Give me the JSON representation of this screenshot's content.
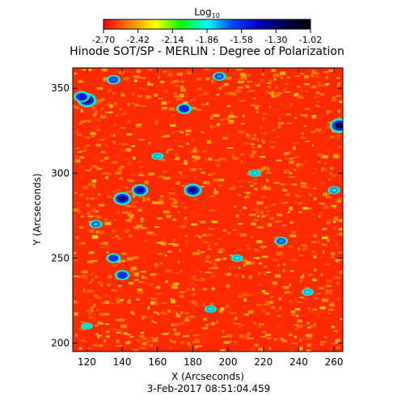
{
  "chart_data": {
    "type": "heatmap",
    "title": "Hinode SOT/SP - MERLIN : Degree of Polarization",
    "xlabel": "X (Arcseconds)",
    "ylabel": "Y (Arcseconds)",
    "xlim": [
      112,
      265
    ],
    "ylim": [
      195,
      362
    ],
    "xticks": [
      120,
      140,
      160,
      180,
      200,
      220,
      240,
      260
    ],
    "yticks": [
      200,
      250,
      300,
      350
    ],
    "timestamp": "3-Feb-2017 08:51:04.459",
    "colorbar": {
      "label_base": "Log",
      "label_sub": "10",
      "range": [
        -2.7,
        -1.02
      ],
      "ticks": [
        "-2.70",
        "-2.42",
        "-2.14",
        "-1.86",
        "-1.58",
        "-1.30",
        "-1.02"
      ],
      "colors": [
        "#ff0000",
        "#ff8000",
        "#ffff00",
        "#00ff00",
        "#00ffff",
        "#0040ff",
        "#0000c0",
        "#000050",
        "#000000"
      ]
    },
    "features": [
      {
        "x": 175,
        "y": 338,
        "v": -1.55
      },
      {
        "x": 150,
        "y": 290,
        "v": -1.4
      },
      {
        "x": 140,
        "y": 285,
        "v": -1.3
      },
      {
        "x": 180,
        "y": 290,
        "v": -1.3
      },
      {
        "x": 120,
        "y": 343,
        "v": -1.2
      },
      {
        "x": 135,
        "y": 355,
        "v": -1.7
      },
      {
        "x": 195,
        "y": 357,
        "v": -1.75
      },
      {
        "x": 263,
        "y": 328,
        "v": -1.15
      },
      {
        "x": 135,
        "y": 250,
        "v": -1.65
      },
      {
        "x": 125,
        "y": 270,
        "v": -1.8
      },
      {
        "x": 230,
        "y": 260,
        "v": -1.75
      },
      {
        "x": 260,
        "y": 290,
        "v": -1.85
      },
      {
        "x": 117,
        "y": 345,
        "v": -1.5
      },
      {
        "x": 140,
        "y": 240,
        "v": -1.6
      },
      {
        "x": 215,
        "y": 300,
        "v": -1.9
      },
      {
        "x": 190,
        "y": 220,
        "v": -1.9
      },
      {
        "x": 160,
        "y": 310,
        "v": -1.9
      },
      {
        "x": 245,
        "y": 230,
        "v": -1.9
      },
      {
        "x": 120,
        "y": 210,
        "v": -1.95
      },
      {
        "x": 205,
        "y": 250,
        "v": -1.9
      }
    ]
  }
}
